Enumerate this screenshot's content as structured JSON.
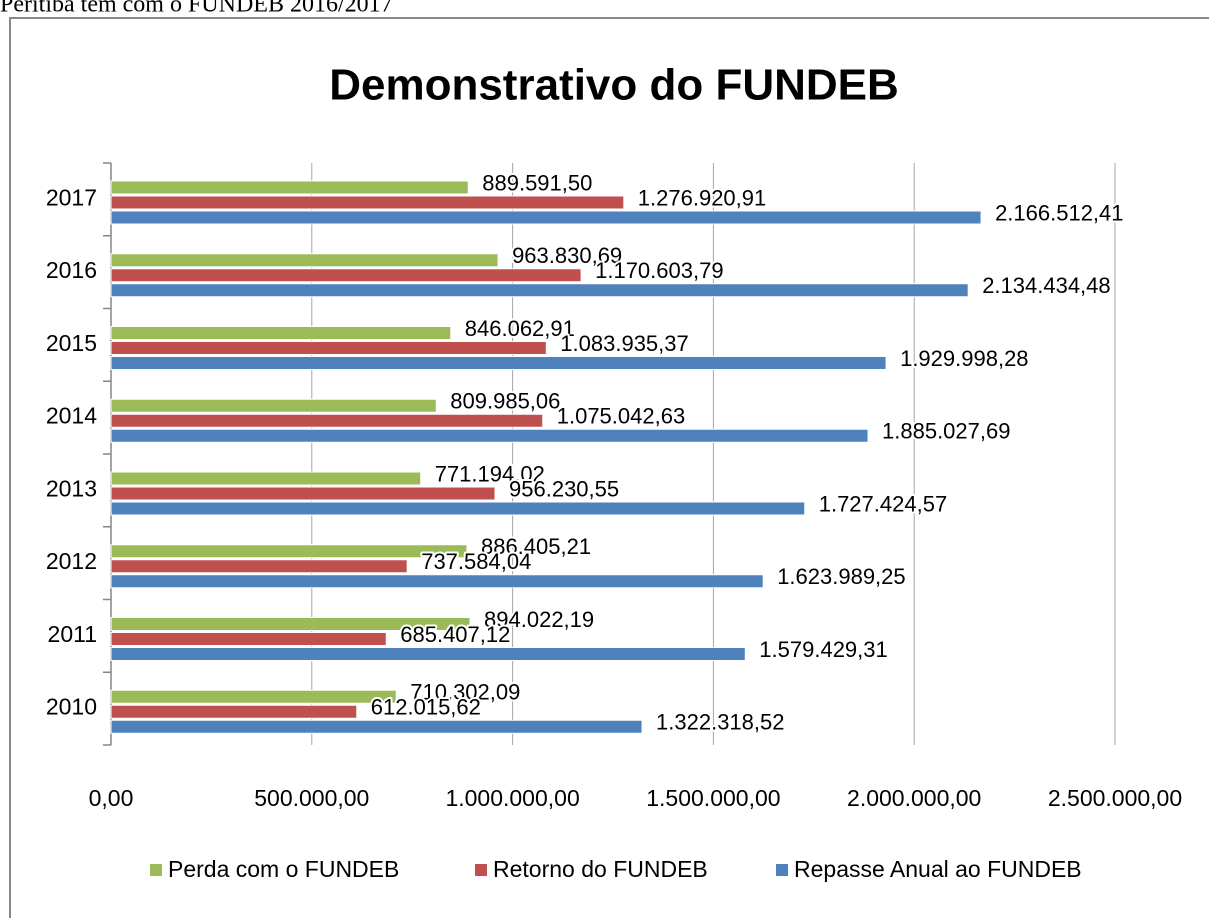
{
  "header_text": "Peritiba tem com o FUNDEB 2016/2017",
  "chart_data": {
    "type": "bar",
    "orientation": "horizontal",
    "title": "Demonstrativo do FUNDEB",
    "categories": [
      "2010",
      "2011",
      "2012",
      "2013",
      "2014",
      "2015",
      "2016",
      "2017"
    ],
    "series": [
      {
        "name": "Perda com o FUNDEB",
        "color": "#9bbb59",
        "values": [
          710302.09,
          894022.19,
          886405.21,
          771194.02,
          809985.06,
          846062.91,
          963830.69,
          889591.5
        ],
        "value_labels": [
          "710.302,09",
          "894.022,19",
          "886.405,21",
          "771.194,02",
          "809.985,06",
          "846.062,91",
          "963.830,69",
          "889.591,50"
        ]
      },
      {
        "name": "Retorno do FUNDEB",
        "color": "#c0504d",
        "values": [
          612015.62,
          685407.12,
          737584.04,
          956230.55,
          1075042.63,
          1083935.37,
          1170603.79,
          1276920.91
        ],
        "value_labels": [
          "612.015,62",
          "685.407,12",
          "737.584,04",
          "956.230,55",
          "1.075.042,63",
          "1.083.935,37",
          "1.170.603,79",
          "1.276.920,91"
        ]
      },
      {
        "name": "Repasse Anual ao FUNDEB",
        "color": "#4f81bd",
        "values": [
          1322318.52,
          1579429.31,
          1623989.25,
          1727424.57,
          1885027.69,
          1929998.28,
          2134434.48,
          2166512.41
        ],
        "value_labels": [
          "1.322.318,52",
          "1.579.429,31",
          "1.623.989,25",
          "1.727.424,57",
          "1.885.027,69",
          "1.929.998,28",
          "2.134.434,48",
          "2.166.512,41"
        ]
      }
    ],
    "xlim": [
      0,
      2500000
    ],
    "xticks": [
      {
        "value": 0,
        "label": "0,00"
      },
      {
        "value": 500000,
        "label": "500.000,00"
      },
      {
        "value": 1000000,
        "label": "1.000.000,00"
      },
      {
        "value": 1500000,
        "label": "1.500.000,00"
      },
      {
        "value": 2000000,
        "label": "2.000.000,00"
      },
      {
        "value": 2500000,
        "label": "2.500.000,00"
      }
    ],
    "grid": true,
    "legend": "bottom"
  }
}
